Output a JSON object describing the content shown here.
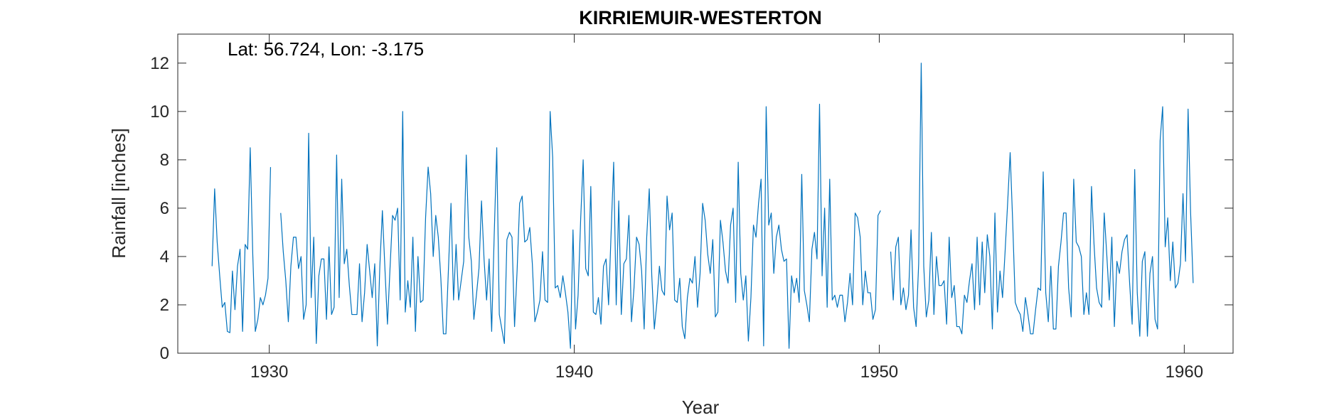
{
  "chart_data": {
    "type": "line",
    "title": "KIRRIEMUIR-WESTERTON",
    "annotation": "Lat: 56.724, Lon: -3.175",
    "xlabel": "Year",
    "ylabel": "Rainfall [inches]",
    "xlim": [
      1927.0,
      1961.6
    ],
    "ylim": [
      0,
      13.2
    ],
    "xticks": [
      1930,
      1940,
      1950,
      1960
    ],
    "xtick_labels": [
      "1930",
      "1940",
      "1950",
      "1960"
    ],
    "yticks": [
      0,
      2,
      4,
      6,
      8,
      10,
      12
    ],
    "ytick_labels": [
      "0",
      "2",
      "4",
      "6",
      "8",
      "10",
      "12"
    ],
    "grid": false,
    "line_color": "#0072BD",
    "series": [
      {
        "start": 1928.125,
        "step": 0.0833333,
        "values": [
          3.6,
          6.8,
          4.6,
          3.2,
          1.9,
          2.1,
          0.9,
          0.85,
          3.4,
          1.8,
          3.6,
          4.3,
          0.9,
          4.5,
          4.3,
          8.5,
          4.1,
          0.9,
          1.4,
          2.3,
          2.0,
          2.4,
          3.1,
          7.7,
          null,
          null,
          null,
          5.8,
          4.2,
          3.0,
          1.3,
          3.6,
          4.8,
          4.8,
          3.5,
          4.0,
          1.4,
          2.0,
          9.1,
          2.3,
          4.8,
          0.4,
          3.2,
          3.9,
          3.9,
          1.4,
          4.4,
          1.6,
          1.9,
          8.2,
          2.3,
          7.2,
          3.7,
          4.3,
          2.8,
          1.6,
          1.6,
          1.6,
          3.7,
          1.3,
          2.5,
          4.5,
          3.4,
          2.3,
          3.7,
          0.3,
          3.6,
          5.9,
          3.5,
          1.2,
          3.5,
          5.7,
          5.5,
          6.0,
          2.2,
          10.0,
          1.7,
          3.0,
          1.9,
          4.8,
          0.9,
          4.0,
          2.1,
          2.2,
          5.6,
          7.7,
          6.6,
          4.0,
          5.7,
          4.8,
          3.1,
          0.8,
          0.8,
          3.5,
          6.2,
          2.2,
          4.5,
          2.2,
          3.0,
          3.8,
          8.2,
          4.8,
          3.8,
          1.4,
          2.4,
          3.5,
          6.3,
          3.9,
          2.2,
          3.9,
          0.9,
          4.9,
          8.5,
          1.6,
          1.0,
          0.4,
          4.7,
          5.0,
          4.8,
          1.1,
          3.4,
          6.2,
          6.5,
          4.6,
          4.7,
          5.2,
          3.7,
          1.3,
          1.7,
          2.2,
          4.2,
          2.2,
          2.1,
          10.0,
          8.1,
          2.7,
          2.8,
          2.3,
          3.2,
          2.5,
          1.7,
          0.2,
          5.1,
          1.0,
          2.4,
          5.5,
          8.0,
          3.5,
          3.2,
          6.9,
          1.7,
          1.6,
          2.3,
          1.2,
          3.6,
          3.9,
          2.0,
          5.0,
          7.9,
          2.0,
          6.3,
          1.6,
          3.7,
          3.9,
          5.7,
          1.3,
          2.7,
          4.8,
          4.5,
          3.4,
          1.0,
          4.8,
          6.8,
          3.2,
          1.0,
          2.1,
          3.6,
          2.6,
          2.4,
          6.5,
          5.1,
          5.8,
          2.2,
          2.1,
          3.1,
          1.1,
          0.6,
          2.3,
          3.1,
          2.9,
          4.0,
          1.9,
          3.3,
          6.2,
          5.5,
          4.1,
          3.3,
          4.7,
          1.5,
          1.7,
          5.5,
          4.6,
          3.4,
          2.9,
          5.3,
          6.0,
          2.1,
          7.9,
          3.3,
          2.2,
          3.2,
          0.5,
          2.3,
          5.3,
          4.8,
          6.2,
          7.2,
          0.3,
          10.2,
          5.3,
          5.8,
          3.3,
          4.8,
          5.3,
          4.3,
          3.8,
          3.9,
          0.2,
          3.2,
          2.5,
          3.1,
          2.1,
          7.4,
          2.6,
          2.0,
          1.3,
          4.3,
          5.0,
          3.9,
          10.3,
          3.2,
          6.0,
          1.9,
          7.2,
          2.2,
          2.4,
          1.9,
          2.4,
          2.4,
          1.3,
          2.1,
          3.3,
          2.0,
          5.8,
          5.6,
          4.8,
          2.0,
          3.4,
          2.5,
          2.5,
          1.4,
          1.8,
          5.7,
          5.9,
          null,
          null,
          null,
          4.2,
          2.2,
          4.4,
          4.8,
          2.0,
          2.7,
          1.8,
          2.4,
          5.1,
          1.9,
          1.1,
          3.7,
          12.0,
          3.6,
          1.5,
          2.2,
          5.0,
          1.6,
          4.0,
          2.8,
          2.8,
          3.0,
          1.2,
          4.8,
          2.3,
          2.8,
          1.1,
          1.1,
          0.8,
          2.4,
          2.1,
          3.0,
          3.7,
          1.8,
          4.8,
          2.0,
          4.6,
          2.5,
          4.9,
          4.0,
          1.0,
          5.8,
          1.7,
          3.4,
          2.3,
          4.2,
          6.2,
          8.3,
          5.4,
          2.1,
          1.8,
          1.6,
          0.9,
          2.3,
          1.6,
          0.8,
          0.8,
          1.8,
          2.7,
          2.6,
          7.5,
          2.5,
          1.3,
          3.6,
          1.0,
          1.0,
          3.6,
          4.6,
          5.8,
          5.8,
          2.7,
          1.5,
          7.2,
          4.6,
          4.4,
          4.0,
          1.6,
          2.5,
          1.6,
          6.9,
          4.5,
          2.7,
          2.1,
          1.9,
          5.8,
          4.1,
          2.2,
          4.8,
          1.1,
          3.8,
          3.3,
          4.2,
          4.7,
          4.9,
          2.9,
          1.2,
          7.6,
          2.5,
          0.7,
          3.8,
          4.2,
          0.7,
          3.3,
          4.0,
          1.4,
          1.0,
          8.8,
          10.2,
          4.4,
          5.6,
          3.0,
          4.6,
          2.7,
          2.9,
          3.7,
          6.6,
          3.8,
          10.1,
          5.8,
          2.9
        ]
      }
    ]
  }
}
